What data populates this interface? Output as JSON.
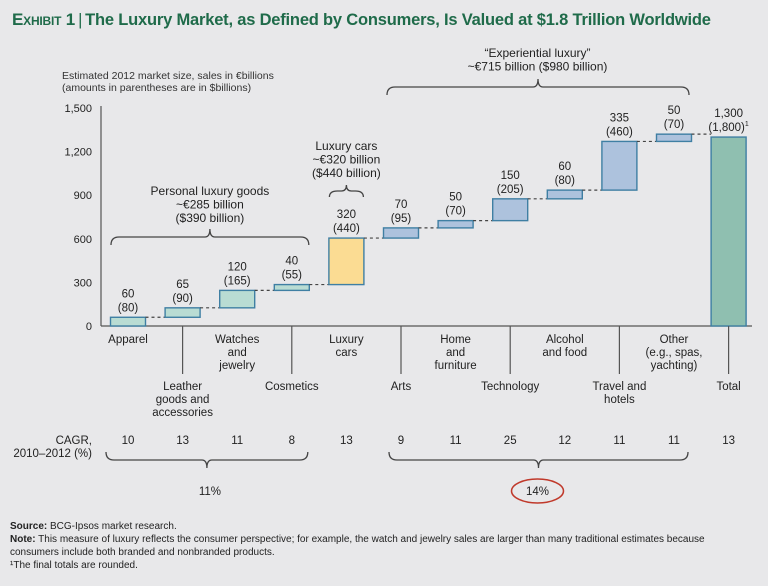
{
  "title": {
    "exhibit": "Exhibit 1",
    "text": "The Luxury Market, as Defined by Consumers, Is Valued at $1.8 Trillion Worldwide"
  },
  "colors": {
    "title_green": "#1f6b4a",
    "personal_fill": "#b9dcd3",
    "personal_stroke": "#3f7fa3",
    "cars_fill": "#fbdc93",
    "cars_stroke": "#3f7fa3",
    "experiential_fill": "#adc2dd",
    "experiential_stroke": "#3f7fa3",
    "total_fill": "#8fbfb0",
    "total_stroke": "#3f7fa3",
    "highlight_circle": "#c0392b"
  },
  "chart_data": {
    "type": "bar",
    "subtype": "waterfall",
    "title": "The Luxury Market, as Defined by Consumers, Is Valued at $1.8 Trillion Worldwide",
    "ylabel_lines": [
      "Estimated 2012 market size, sales in €billions",
      "(amounts in parentheses are in $billions)"
    ],
    "ylim": [
      0,
      1500
    ],
    "yticks": [
      0,
      300,
      600,
      900,
      1200,
      1500
    ],
    "ytick_labels": [
      "0",
      "300",
      "600",
      "900",
      "1,200",
      "1,500"
    ],
    "grid": false,
    "categories": [
      {
        "label": [
          "Apparel"
        ],
        "row": "top",
        "value": 60,
        "usd": "(80)",
        "group": "personal",
        "cagr": "10"
      },
      {
        "label": [
          "Leather",
          "goods and",
          "accessories"
        ],
        "row": "bottom",
        "value": 65,
        "usd": "(90)",
        "group": "personal",
        "cagr": "13"
      },
      {
        "label": [
          "Watches",
          "and",
          "jewelry"
        ],
        "row": "top",
        "value": 120,
        "usd": "(165)",
        "group": "personal",
        "cagr": "11"
      },
      {
        "label": [
          "Cosmetics"
        ],
        "row": "bottom",
        "value": 40,
        "usd": "(55)",
        "group": "personal",
        "cagr": "8"
      },
      {
        "label": [
          "Luxury",
          "cars"
        ],
        "row": "top",
        "value": 320,
        "usd": "(440)",
        "group": "cars",
        "cagr": "13"
      },
      {
        "label": [
          "Arts"
        ],
        "row": "bottom",
        "value": 70,
        "usd": "(95)",
        "group": "experiential",
        "cagr": "9"
      },
      {
        "label": [
          "Home",
          "and",
          "furniture"
        ],
        "row": "top",
        "value": 50,
        "usd": "(70)",
        "group": "experiential",
        "cagr": "11"
      },
      {
        "label": [
          "Technology"
        ],
        "row": "bottom",
        "value": 150,
        "usd": "(205)",
        "group": "experiential",
        "cagr": "25"
      },
      {
        "label": [
          "Alcohol",
          "and food"
        ],
        "row": "top",
        "value": 60,
        "usd": "(80)",
        "group": "experiential",
        "cagr": "12"
      },
      {
        "label": [
          "Travel and",
          "hotels"
        ],
        "row": "bottom",
        "value": 335,
        "usd": "(460)",
        "group": "experiential",
        "cagr": "11"
      },
      {
        "label": [
          "Other",
          "(e.g., spas,",
          "yachting)"
        ],
        "row": "top",
        "value": 50,
        "usd": "(70)",
        "group": "experiential",
        "cagr": "11"
      },
      {
        "label": [
          "Total"
        ],
        "row": "bottom",
        "value": 1300,
        "usd": "(1,800)",
        "usd_sup": "1",
        "group": "total",
        "cagr": "13",
        "is_total": true
      }
    ],
    "value_labels": [
      "1,300"
    ],
    "brackets": {
      "personal": {
        "lines": [
          "Personal luxury goods",
          "~€285 billion",
          "($390 billion)"
        ]
      },
      "cars": {
        "lines": [
          "Luxury cars",
          "~€320 billion",
          "($440 billion)"
        ]
      },
      "experiential": {
        "lines": [
          "“Experiential luxury”",
          "~€715 billion ($980 billion)"
        ]
      }
    },
    "cagr": {
      "label_lines": [
        "CAGR,",
        "2010–2012 (%)"
      ],
      "personal_avg": "11%",
      "experiential_avg": "14%",
      "experiential_avg_circled": true
    }
  },
  "footer": {
    "source_label": "Source:",
    "source_text": " BCG-Ipsos market research.",
    "note_label": "Note:",
    "note_text": " This measure of luxury reflects the consumer perspective; for example, the watch and jewelry sales are larger than many traditional estimates because consumers include both branded and nonbranded products.",
    "footnote": "¹The final totals are rounded."
  }
}
